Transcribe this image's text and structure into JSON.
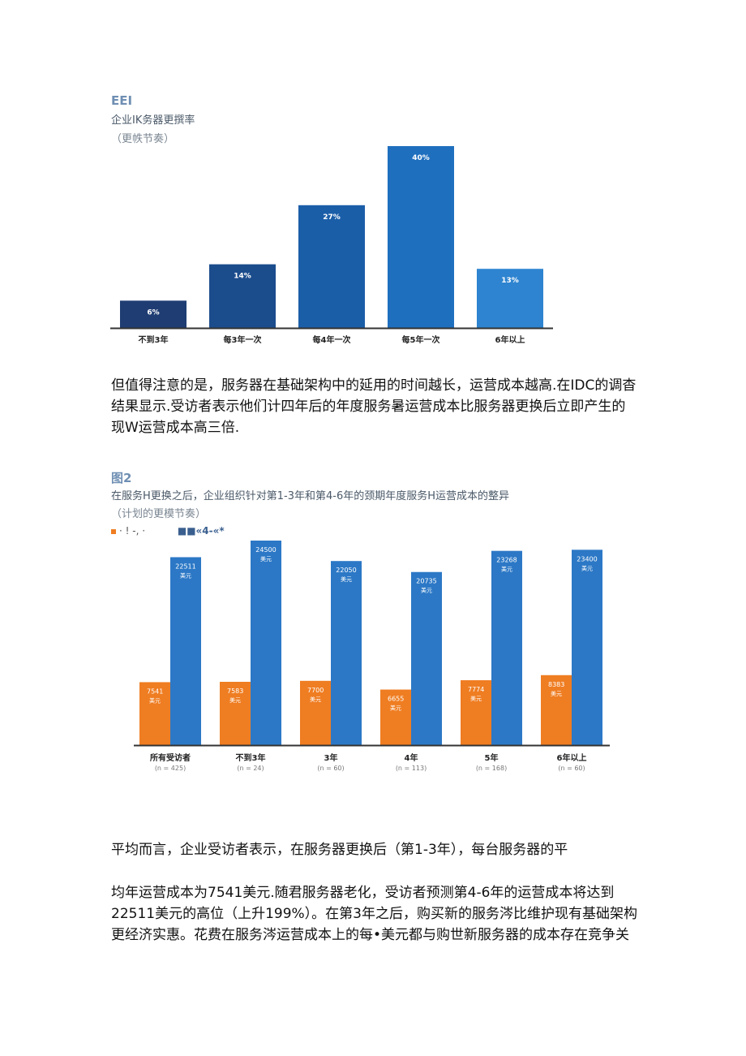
{
  "figure1": {
    "label": "EEI",
    "title": "企业IK务器更撰率",
    "subtitle": "（更帙节奏）",
    "chart_data": {
      "type": "bar",
      "categories": [
        "不到3年",
        "每3年一次",
        "每4年一次",
        "每5年一次",
        "6年以上"
      ],
      "values": [
        6,
        14,
        27,
        40,
        13
      ],
      "value_labels": [
        "6%",
        "14%",
        "27%",
        "40%",
        "13%"
      ],
      "colors": [
        "#1f3d73",
        "#1b4c8c",
        "#1b5ea8",
        "#1f6fbf",
        "#2e84d0"
      ],
      "ylim": [
        0,
        40
      ]
    }
  },
  "paragraph1": "但值得注意的是，服务器在基础架构中的延用的时间越长，运营成本越高.在IDC的调杳结果显示.受访者表示他们计四年后的年度服务暑运营成本比服务器更换后立即产生的现W运营成本高三倍.",
  "figure2": {
    "label": "图2",
    "title": "在服务H更换之后，企业组织针对第1-3年和第4-6年的颈期年度服务H运营成本的整异",
    "subtitle": "（计划的更模节奏）",
    "legend": [
      {
        "label": "· ! -, ·",
        "color": "#ef7d22"
      },
      {
        "label": "■■«4-«*",
        "color": "#2f6db3"
      }
    ],
    "chart_data": {
      "type": "bar",
      "categories": [
        "所有受访者",
        "不到3年",
        "3年",
        "4年",
        "5年",
        "6年以上"
      ],
      "category_notes": [
        "(n = 425)",
        "(n = 24)",
        "(n = 60)",
        "(n = 113)",
        "(n = 168)",
        "(n = 60)"
      ],
      "series": [
        {
          "values": [
            7541,
            7583,
            7700,
            6655,
            7774,
            8383
          ],
          "color": "#ef7d22"
        },
        {
          "values": [
            22511,
            24500,
            22050,
            20735,
            23268,
            23400
          ],
          "color": "#2c78c6"
        }
      ],
      "unit_label": "美元",
      "ylim": [
        0,
        24500
      ]
    }
  },
  "paragraph2": "平均而言，企业受访者表示，在服务器更换后（第1-3年），每台服务器的平",
  "paragraph3": "均年运营成本为7541美元.随君服务器老化，受访者预测第4-6年的运营成本将达到22511美元的高位（上升199%）。在第3年之后，购买新的服务涔比维护现有基础架构更经济实惠。花费在服务涔运营成本上的每•美元都与购世新服务器的成本存在竞争关"
}
